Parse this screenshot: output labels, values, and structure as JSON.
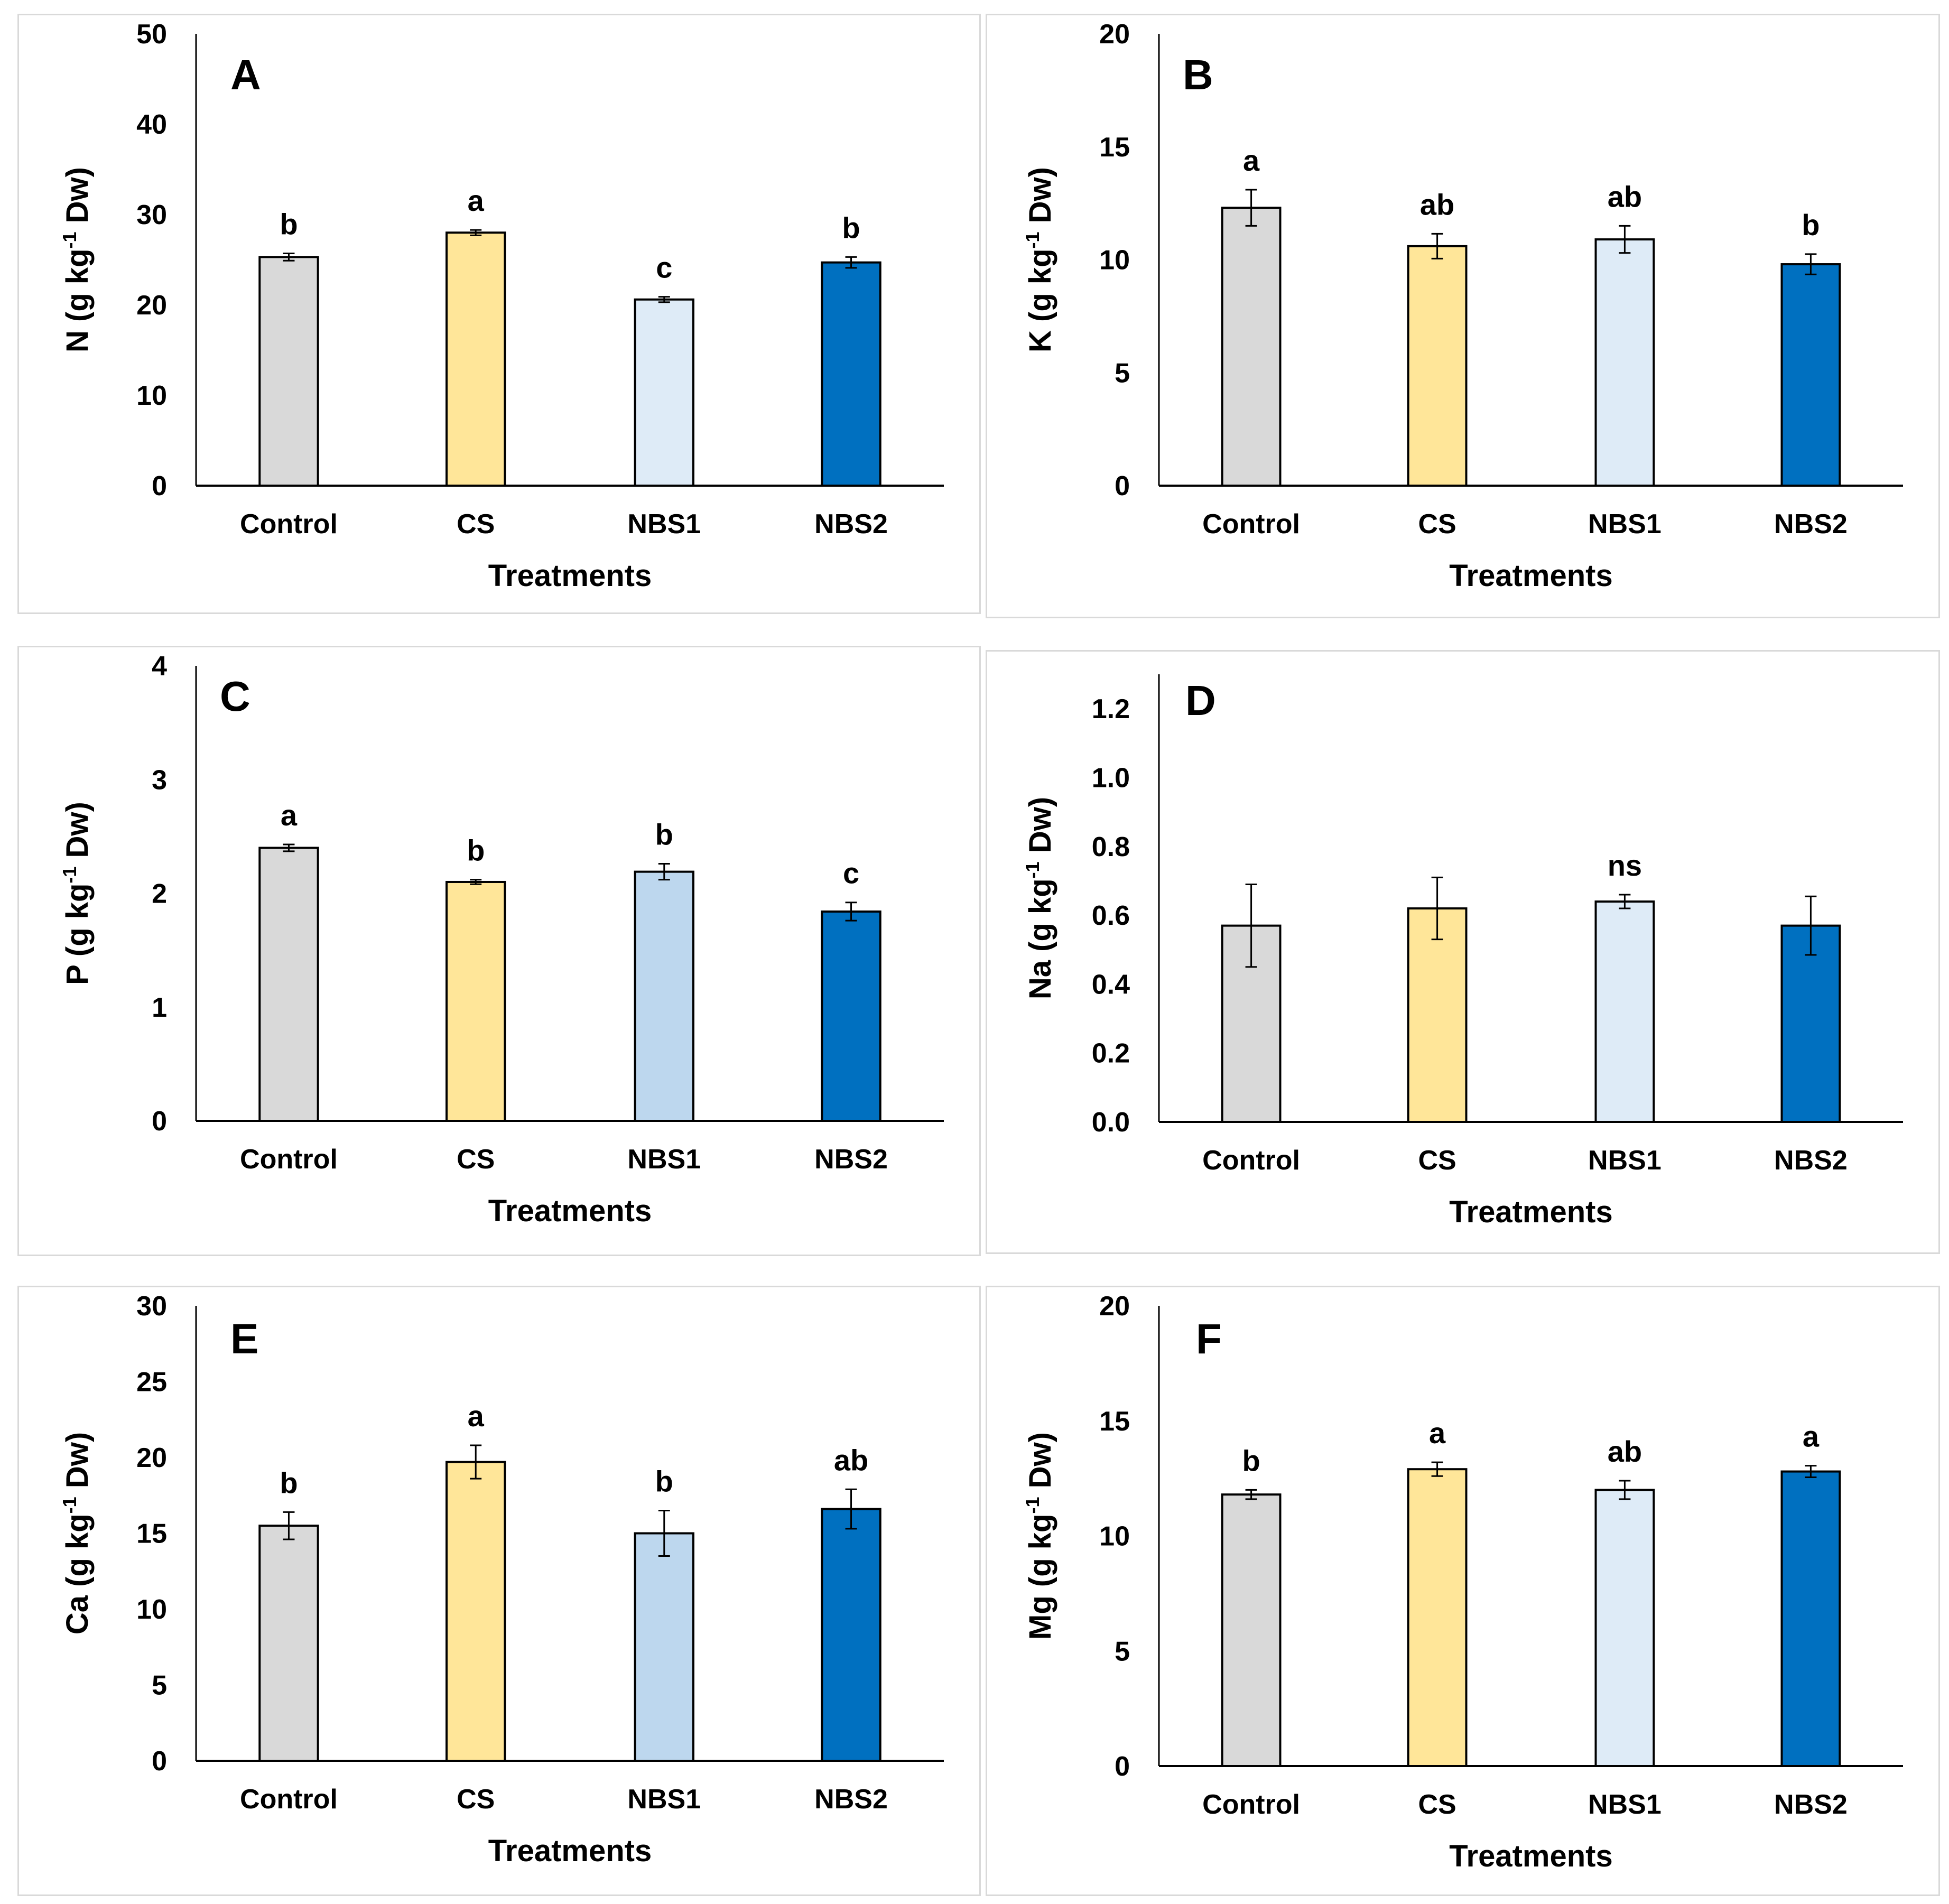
{
  "chart_data": [
    {
      "type": "bar",
      "panel_label": "A",
      "categories": [
        "Control",
        "CS",
        "NBS1",
        "NBS2"
      ],
      "values": [
        25.3,
        28.0,
        20.6,
        24.7
      ],
      "errors": [
        0.4,
        0.3,
        0.3,
        0.6
      ],
      "letters": [
        "b",
        "a",
        "c",
        "b"
      ],
      "colors": [
        "#d9d9d9",
        "#ffe699",
        "#deebf7",
        "#0070c0"
      ],
      "xlabel": "Treatments",
      "ylabel": {
        "element": "N",
        "prefix": " (g kg",
        "superscript": "-1",
        "suffix": " Dw)"
      },
      "ylim": [
        0,
        50
      ],
      "yticks": [
        "0",
        "10",
        "20",
        "30",
        "40",
        "50"
      ],
      "ytick_values": [
        0,
        10,
        20,
        30,
        40,
        50
      ]
    },
    {
      "type": "bar",
      "panel_label": "B",
      "categories": [
        "Control",
        "CS",
        "NBS1",
        "NBS2"
      ],
      "values": [
        12.3,
        10.6,
        10.9,
        9.8
      ],
      "errors": [
        0.8,
        0.55,
        0.6,
        0.45
      ],
      "letters": [
        "a",
        "ab",
        "ab",
        "b"
      ],
      "colors": [
        "#d9d9d9",
        "#ffe699",
        "#deebf7",
        "#0070c0"
      ],
      "xlabel": "Treatments",
      "ylabel": {
        "element": "K",
        "prefix": " (g kg",
        "superscript": "-1",
        "suffix": " Dw)"
      },
      "ylim": [
        0,
        20
      ],
      "yticks": [
        "0",
        "5",
        "10",
        "15",
        "20"
      ],
      "ytick_values": [
        0,
        5,
        10,
        15,
        20
      ]
    },
    {
      "type": "bar",
      "panel_label": "C",
      "categories": [
        "Control",
        "CS",
        "NBS1",
        "NBS2"
      ],
      "values": [
        2.4,
        2.1,
        2.19,
        1.84
      ],
      "errors": [
        0.03,
        0.02,
        0.07,
        0.08
      ],
      "letters": [
        "a",
        "b",
        "b",
        "c"
      ],
      "colors": [
        "#d9d9d9",
        "#ffe699",
        "#bdd7ee",
        "#0070c0"
      ],
      "xlabel": "Treatments",
      "ylabel": {
        "element": "P",
        "prefix": " (g kg",
        "superscript": "-1",
        "suffix": " Dw)"
      },
      "ylim": [
        0,
        4
      ],
      "yticks": [
        "0",
        "1",
        "2",
        "3",
        "4"
      ],
      "ytick_values": [
        0,
        1,
        2,
        3,
        4
      ]
    },
    {
      "type": "bar",
      "panel_label": "D",
      "categories": [
        "Control",
        "CS",
        "NBS1",
        "NBS2"
      ],
      "values": [
        0.57,
        0.62,
        0.64,
        0.57
      ],
      "errors": [
        0.12,
        0.09,
        0.02,
        0.085
      ],
      "letters": [
        "",
        "",
        "ns",
        ""
      ],
      "colors": [
        "#d9d9d9",
        "#ffe699",
        "#deebf7",
        "#0070c0"
      ],
      "xlabel": "Treatments",
      "ylabel": {
        "element": "Na",
        "prefix": " (g kg",
        "superscript": "-1",
        "suffix": " Dw)"
      },
      "ylim": [
        0,
        1.3
      ],
      "yticks": [
        "0.0",
        "0.2",
        "0.4",
        "0.6",
        "0.8",
        "1.0",
        "1.2"
      ],
      "ytick_values": [
        0,
        0.2,
        0.4,
        0.6,
        0.8,
        1.0,
        1.2
      ]
    },
    {
      "type": "bar",
      "panel_label": "E",
      "categories": [
        "Control",
        "CS",
        "NBS1",
        "NBS2"
      ],
      "values": [
        15.5,
        19.7,
        15.0,
        16.6
      ],
      "errors": [
        0.9,
        1.1,
        1.5,
        1.3
      ],
      "letters": [
        "b",
        "a",
        "b",
        "ab"
      ],
      "colors": [
        "#d9d9d9",
        "#ffe699",
        "#bdd7ee",
        "#0070c0"
      ],
      "xlabel": "Treatments",
      "ylabel": {
        "element": "Ca",
        "prefix": " (g kg",
        "superscript": "-1",
        "suffix": " Dw)"
      },
      "ylim": [
        0,
        30
      ],
      "yticks": [
        "0",
        "5",
        "10",
        "15",
        "20",
        "25",
        "30"
      ],
      "ytick_values": [
        0,
        5,
        10,
        15,
        20,
        25,
        30
      ]
    },
    {
      "type": "bar",
      "panel_label": "F",
      "categories": [
        "Control",
        "CS",
        "NBS1",
        "NBS2"
      ],
      "values": [
        11.8,
        12.9,
        12.0,
        12.8
      ],
      "errors": [
        0.2,
        0.3,
        0.4,
        0.25
      ],
      "letters": [
        "b",
        "a",
        "ab",
        "a"
      ],
      "colors": [
        "#d9d9d9",
        "#ffe699",
        "#deebf7",
        "#0070c0"
      ],
      "xlabel": "Treatments",
      "ylabel": {
        "element": "Mg",
        "prefix": " (g kg",
        "superscript": "-1",
        "suffix": " Dw)"
      },
      "ylim": [
        0,
        20
      ],
      "yticks": [
        "0",
        "5",
        "10",
        "15",
        "20"
      ],
      "ytick_values": [
        0,
        5,
        10,
        15,
        20
      ]
    }
  ]
}
